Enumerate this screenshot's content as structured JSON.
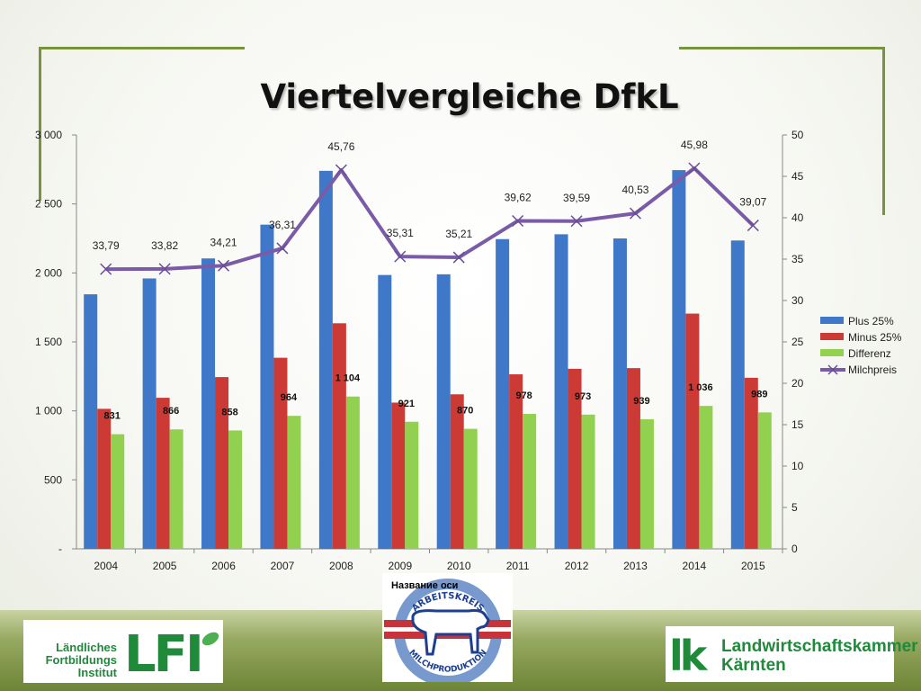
{
  "title": "Viertelvergleiche DfkL",
  "axis_caption": "Название оси",
  "logos": {
    "lfi_text": [
      "Ländliches",
      "Fortbildungs",
      "Institut"
    ],
    "lfi_letters": "LFI",
    "lk_mark": "lk",
    "lk_text": [
      "Landwirtschaftskammer",
      "Kärnten"
    ],
    "arge_top": "ARBEITSKREIS",
    "arge_bottom": "MILCHPRODUKTION"
  },
  "colors": {
    "plus": "#3f78c8",
    "minus": "#cc3a35",
    "differenz": "#92d050",
    "milchpreis": "#7a5ba8",
    "accent": "#77933c"
  },
  "chart_data": {
    "type": "bar",
    "categories": [
      "2004",
      "2005",
      "2006",
      "2007",
      "2008",
      "2009",
      "2010",
      "2011",
      "2012",
      "2013",
      "2014",
      "2015"
    ],
    "ylim": [
      0,
      3000
    ],
    "y_ticks": [
      "-",
      "500",
      "1 000",
      "1 500",
      "2 000",
      "2 500",
      "3 000"
    ],
    "y2lim": [
      0,
      50
    ],
    "y2_ticks": [
      "0",
      "5",
      "10",
      "15",
      "20",
      "25",
      "30",
      "35",
      "40",
      "45",
      "50"
    ],
    "legend_position": "right",
    "grid": false,
    "series": [
      {
        "name": "Plus 25%",
        "type": "bar",
        "axis": "left",
        "values": [
          1845,
          1960,
          2105,
          2350,
          2740,
          1985,
          1990,
          2245,
          2280,
          2250,
          2745,
          2235
        ]
      },
      {
        "name": "Minus 25%",
        "type": "bar",
        "axis": "left",
        "values": [
          1015,
          1095,
          1245,
          1385,
          1635,
          1060,
          1120,
          1265,
          1305,
          1310,
          1705,
          1240
        ]
      },
      {
        "name": "Differenz",
        "type": "bar",
        "axis": "left",
        "values": [
          831,
          866,
          858,
          964,
          1104,
          921,
          870,
          978,
          973,
          939,
          1036,
          989
        ],
        "labels": [
          "831",
          "866",
          "858",
          "964",
          "1 104",
          "921",
          "870",
          "978",
          "973",
          "939",
          "1 036",
          "989"
        ]
      },
      {
        "name": "Milchpreis",
        "type": "line",
        "axis": "right",
        "values": [
          33.79,
          33.82,
          34.21,
          36.31,
          45.76,
          35.31,
          35.21,
          39.62,
          39.59,
          40.53,
          45.98,
          39.07
        ],
        "labels": [
          "33,79",
          "33,82",
          "34,21",
          "36,31",
          "45,76",
          "35,31",
          "35,21",
          "39,62",
          "39,59",
          "40,53",
          "45,98",
          "39,07"
        ]
      }
    ]
  }
}
